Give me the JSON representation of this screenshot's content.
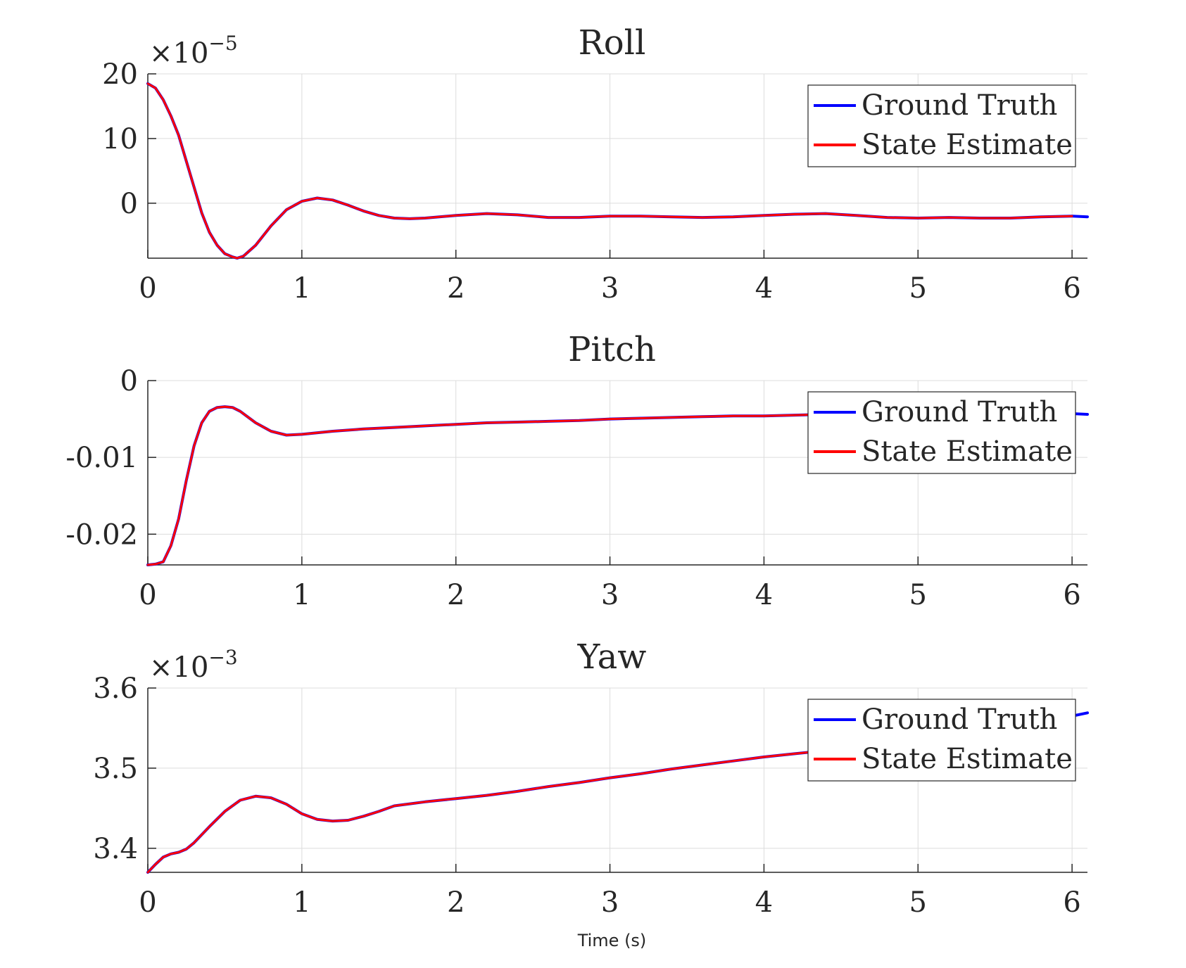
{
  "chart_data": [
    {
      "type": "line",
      "title": "Roll",
      "xlabel": "",
      "ylabel": "",
      "xlim": [
        0,
        6.1
      ],
      "ylim": [
        -8.5,
        20
      ],
      "exponent_label": "×10",
      "exponent_power": "−5",
      "xticks": [
        0,
        1,
        2,
        3,
        4,
        5,
        6
      ],
      "xtick_labels": [
        "0",
        "1",
        "2",
        "3",
        "4",
        "5",
        "6"
      ],
      "yticks": [
        20,
        10,
        0
      ],
      "ytick_labels": [
        "20",
        "10",
        "0"
      ],
      "grid": true,
      "legend": [
        "Ground Truth",
        "State Estimate"
      ],
      "legend_position": "top-right",
      "series": [
        {
          "name": "Ground Truth",
          "color": "#0000ff",
          "x": [
            0,
            0.05,
            0.1,
            0.15,
            0.2,
            0.25,
            0.3,
            0.35,
            0.4,
            0.45,
            0.5,
            0.55,
            0.58,
            0.62,
            0.7,
            0.8,
            0.9,
            1.0,
            1.1,
            1.2,
            1.3,
            1.4,
            1.5,
            1.6,
            1.7,
            1.8,
            2.0,
            2.2,
            2.4,
            2.6,
            2.8,
            3.0,
            3.2,
            3.4,
            3.6,
            3.8,
            4.0,
            4.2,
            4.4,
            4.6,
            4.8,
            5.0,
            5.2,
            5.4,
            5.6,
            5.8,
            6.0,
            6.1
          ],
          "y": [
            18.5,
            17.8,
            16.0,
            13.5,
            10.5,
            6.5,
            2.5,
            -1.5,
            -4.5,
            -6.5,
            -7.8,
            -8.3,
            -8.5,
            -8.2,
            -6.5,
            -3.5,
            -1.0,
            0.3,
            0.8,
            0.5,
            -0.3,
            -1.2,
            -1.9,
            -2.3,
            -2.4,
            -2.3,
            -1.9,
            -1.6,
            -1.8,
            -2.2,
            -2.2,
            -2.0,
            -2.0,
            -2.1,
            -2.2,
            -2.1,
            -1.9,
            -1.7,
            -1.6,
            -1.9,
            -2.2,
            -2.3,
            -2.2,
            -2.3,
            -2.3,
            -2.1,
            -2.0,
            -2.1
          ]
        },
        {
          "name": "State Estimate",
          "color": "#ff0000",
          "x": [
            0,
            0.05,
            0.1,
            0.15,
            0.2,
            0.25,
            0.3,
            0.35,
            0.4,
            0.45,
            0.5,
            0.55,
            0.58,
            0.62,
            0.7,
            0.8,
            0.9,
            1.0,
            1.1,
            1.2,
            1.3,
            1.4,
            1.5,
            1.6,
            1.7,
            1.8,
            2.0,
            2.2,
            2.4,
            2.6,
            2.8,
            3.0,
            3.2,
            3.4,
            3.6,
            3.8,
            4.0,
            4.2,
            4.4,
            4.6,
            4.8,
            5.0,
            5.2,
            5.4,
            5.6,
            5.8,
            6.0
          ],
          "y": [
            18.5,
            17.8,
            16.0,
            13.5,
            10.5,
            6.5,
            2.5,
            -1.5,
            -4.5,
            -6.5,
            -7.8,
            -8.3,
            -8.5,
            -8.2,
            -6.5,
            -3.5,
            -1.0,
            0.3,
            0.8,
            0.5,
            -0.3,
            -1.2,
            -1.9,
            -2.3,
            -2.4,
            -2.3,
            -1.9,
            -1.6,
            -1.8,
            -2.2,
            -2.2,
            -2.0,
            -2.0,
            -2.1,
            -2.2,
            -2.1,
            -1.9,
            -1.7,
            -1.6,
            -1.9,
            -2.2,
            -2.3,
            -2.2,
            -2.3,
            -2.3,
            -2.1,
            -2.0
          ]
        }
      ]
    },
    {
      "type": "line",
      "title": "Pitch",
      "xlabel": "",
      "ylabel": "",
      "xlim": [
        0,
        6.1
      ],
      "ylim": [
        -0.024,
        0
      ],
      "exponent_label": "",
      "exponent_power": "",
      "xticks": [
        0,
        1,
        2,
        3,
        4,
        5,
        6
      ],
      "xtick_labels": [
        "0",
        "1",
        "2",
        "3",
        "4",
        "5",
        "6"
      ],
      "yticks": [
        0,
        -0.01,
        -0.02
      ],
      "ytick_labels": [
        "0",
        "-0.01",
        "-0.02"
      ],
      "grid": true,
      "legend": [
        "Ground Truth",
        "State Estimate"
      ],
      "legend_position": "top-right",
      "series": [
        {
          "name": "Ground Truth",
          "color": "#0000ff",
          "x": [
            0,
            0.05,
            0.1,
            0.15,
            0.2,
            0.25,
            0.3,
            0.35,
            0.4,
            0.45,
            0.5,
            0.55,
            0.6,
            0.7,
            0.8,
            0.9,
            1.0,
            1.2,
            1.4,
            1.6,
            1.8,
            2.0,
            2.2,
            2.4,
            2.6,
            2.8,
            3.0,
            3.2,
            3.4,
            3.6,
            3.8,
            4.0,
            4.2,
            4.4,
            4.6,
            4.8,
            5.0,
            5.2,
            5.4,
            5.6,
            5.8,
            6.0,
            6.1
          ],
          "y": [
            -0.024,
            -0.0239,
            -0.0236,
            -0.0215,
            -0.018,
            -0.013,
            -0.0085,
            -0.0055,
            -0.004,
            -0.0035,
            -0.0034,
            -0.0035,
            -0.004,
            -0.0055,
            -0.0066,
            -0.0071,
            -0.007,
            -0.0066,
            -0.0063,
            -0.0061,
            -0.0059,
            -0.0057,
            -0.0055,
            -0.0054,
            -0.0053,
            -0.0052,
            -0.005,
            -0.0049,
            -0.0048,
            -0.0047,
            -0.0046,
            -0.0046,
            -0.0045,
            -0.0044,
            -0.0044,
            -0.0043,
            -0.0043,
            -0.0043,
            -0.0042,
            -0.0042,
            -0.0043,
            -0.0043,
            -0.0044
          ]
        },
        {
          "name": "State Estimate",
          "color": "#ff0000",
          "x": [
            0,
            0.05,
            0.1,
            0.15,
            0.2,
            0.25,
            0.3,
            0.35,
            0.4,
            0.45,
            0.5,
            0.55,
            0.6,
            0.7,
            0.8,
            0.9,
            1.0,
            1.2,
            1.4,
            1.6,
            1.8,
            2.0,
            2.2,
            2.4,
            2.6,
            2.8,
            3.0,
            3.2,
            3.4,
            3.6,
            3.8,
            4.0,
            4.2,
            4.4,
            4.6
          ],
          "y": [
            -0.024,
            -0.0239,
            -0.0236,
            -0.0215,
            -0.018,
            -0.013,
            -0.0085,
            -0.0055,
            -0.004,
            -0.0035,
            -0.0034,
            -0.0035,
            -0.004,
            -0.0055,
            -0.0066,
            -0.0071,
            -0.007,
            -0.0066,
            -0.0063,
            -0.0061,
            -0.0059,
            -0.0057,
            -0.0055,
            -0.0054,
            -0.0053,
            -0.0052,
            -0.005,
            -0.0049,
            -0.0048,
            -0.0047,
            -0.0046,
            -0.0046,
            -0.0045,
            -0.0044,
            -0.0044
          ]
        }
      ]
    },
    {
      "type": "line",
      "title": "Yaw",
      "xlabel": "Time (s)",
      "ylabel": "",
      "xlim": [
        0,
        6.1
      ],
      "ylim": [
        3.37,
        3.6
      ],
      "exponent_label": "×10",
      "exponent_power": "−3",
      "xticks": [
        0,
        1,
        2,
        3,
        4,
        5,
        6
      ],
      "xtick_labels": [
        "0",
        "1",
        "2",
        "3",
        "4",
        "5",
        "6"
      ],
      "yticks": [
        3.6,
        3.5,
        3.4
      ],
      "ytick_labels": [
        "3.6",
        "3.5",
        "3.4"
      ],
      "grid": true,
      "legend": [
        "Ground Truth",
        "State Estimate"
      ],
      "legend_position": "top-right",
      "series": [
        {
          "name": "Ground Truth",
          "color": "#0000ff",
          "x": [
            0,
            0.05,
            0.1,
            0.15,
            0.2,
            0.25,
            0.3,
            0.35,
            0.4,
            0.5,
            0.6,
            0.7,
            0.8,
            0.9,
            1.0,
            1.1,
            1.2,
            1.3,
            1.4,
            1.5,
            1.6,
            1.8,
            2.0,
            2.2,
            2.4,
            2.6,
            2.8,
            3.0,
            3.2,
            3.4,
            3.6,
            3.8,
            4.0,
            4.2,
            4.4,
            4.6,
            4.8,
            5.0,
            5.2,
            5.4,
            5.6,
            5.8,
            6.0,
            6.1
          ],
          "y": [
            3.37,
            3.38,
            3.389,
            3.393,
            3.395,
            3.399,
            3.407,
            3.417,
            3.427,
            3.446,
            3.46,
            3.465,
            3.463,
            3.455,
            3.443,
            3.436,
            3.434,
            3.435,
            3.44,
            3.446,
            3.453,
            3.458,
            3.462,
            3.466,
            3.471,
            3.477,
            3.482,
            3.488,
            3.493,
            3.499,
            3.504,
            3.509,
            3.514,
            3.518,
            3.522,
            3.528,
            3.534,
            3.54,
            3.545,
            3.55,
            3.555,
            3.56,
            3.565,
            3.569
          ]
        },
        {
          "name": "State Estimate",
          "color": "#ff0000",
          "x": [
            0,
            0.05,
            0.1,
            0.15,
            0.2,
            0.25,
            0.3,
            0.35,
            0.4,
            0.5,
            0.6,
            0.7,
            0.8,
            0.9,
            1.0,
            1.1,
            1.2,
            1.3,
            1.4,
            1.5,
            1.6,
            1.8,
            2.0,
            2.2,
            2.4,
            2.6,
            2.8,
            3.0,
            3.2,
            3.4,
            3.6,
            3.8,
            4.0,
            4.2,
            4.4,
            4.6
          ],
          "y": [
            3.37,
            3.38,
            3.389,
            3.393,
            3.395,
            3.399,
            3.407,
            3.417,
            3.427,
            3.446,
            3.46,
            3.465,
            3.463,
            3.455,
            3.443,
            3.436,
            3.434,
            3.435,
            3.44,
            3.446,
            3.453,
            3.458,
            3.462,
            3.466,
            3.471,
            3.477,
            3.482,
            3.488,
            3.493,
            3.499,
            3.504,
            3.509,
            3.514,
            3.518,
            3.522,
            3.528
          ]
        }
      ]
    }
  ]
}
